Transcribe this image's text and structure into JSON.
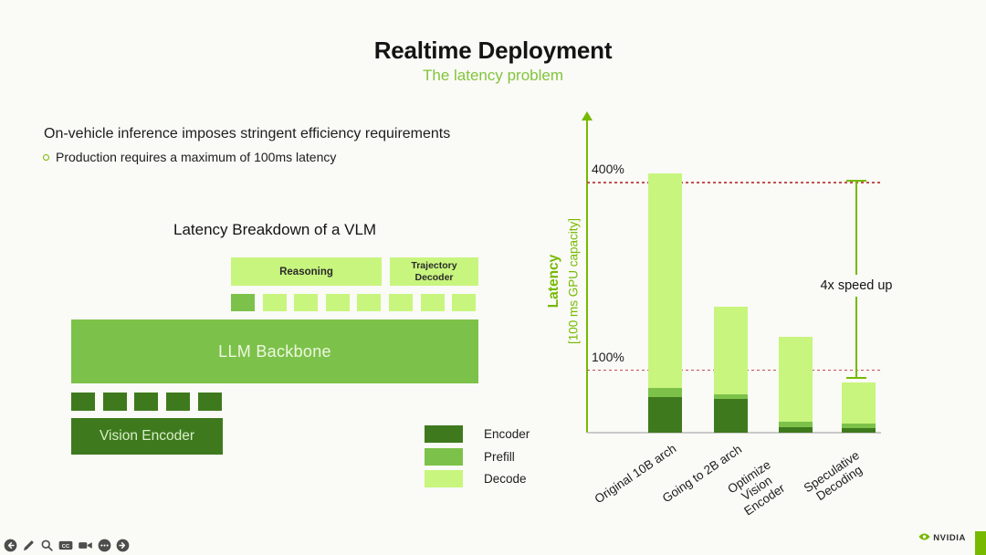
{
  "slide": {
    "title": "Realtime Deployment",
    "subtitle": "The latency problem",
    "body_line": "On-vehicle inference imposes stringent efficiency requirements",
    "bullet": "Production requires a maximum of 100ms latency",
    "diagram_title": "Latency Breakdown of a VLM"
  },
  "colors": {
    "encoder": "#3e7a1d",
    "prefill": "#7cc24a",
    "decode": "#c8f57e",
    "accent_green": "#76b900",
    "subtitle_green": "#82c43c",
    "red_dashed": "#c15151",
    "axis_gray": "#c9c9c9",
    "icon_gray": "#4d4d4d"
  },
  "diagram": {
    "reasoning_label": "Reasoning",
    "trajectory_label": "Trajectory Decoder",
    "backbone_label": "LLM Backbone",
    "vision_label": "Vision Encoder",
    "top_row": [
      "prefill",
      "decode",
      "decode",
      "decode",
      "decode",
      "decode",
      "decode",
      "decode"
    ],
    "bottom_row": [
      "encoder",
      "encoder",
      "encoder",
      "encoder",
      "encoder"
    ]
  },
  "legend": [
    {
      "label": "Encoder",
      "color_key": "encoder"
    },
    {
      "label": "Prefill",
      "color_key": "prefill"
    },
    {
      "label": "Decode",
      "color_key": "decode"
    }
  ],
  "chart_data": {
    "type": "bar",
    "stacked": true,
    "ylabel": "Latency",
    "ylabel_sub": "[100 ms GPU capacity]",
    "categories": [
      "Original 10B arch",
      "Going to 2B arch",
      "Optimize Vision Encoder",
      "Speculative Decoding"
    ],
    "category_lines": [
      [
        "Original 10B arch"
      ],
      [
        "Going to 2B arch"
      ],
      [
        "Optimize",
        "Vision",
        "Encoder"
      ],
      [
        "Speculative",
        "Decoding"
      ]
    ],
    "series": [
      {
        "name": "Encoder",
        "color_key": "encoder",
        "values": [
          57,
          54,
          9,
          7
        ]
      },
      {
        "name": "Prefill",
        "color_key": "prefill",
        "values": [
          15,
          7,
          9,
          7
        ]
      },
      {
        "name": "Decode",
        "color_key": "decode",
        "values": [
          343,
          140,
          135,
          67
        ]
      }
    ],
    "totals_pct": [
      415,
      201,
      153,
      81
    ],
    "reference_lines": [
      {
        "label": "400%",
        "value": 400
      },
      {
        "label": "100%",
        "value": 100
      }
    ],
    "annotation": "4x speed up",
    "ylim": [
      0,
      510
    ],
    "grid": false,
    "legend_position": "bottom-left"
  },
  "footer": {
    "icons": [
      "back",
      "pencil",
      "search",
      "captions",
      "camera",
      "more",
      "forward"
    ],
    "brand": "NVIDIA"
  }
}
